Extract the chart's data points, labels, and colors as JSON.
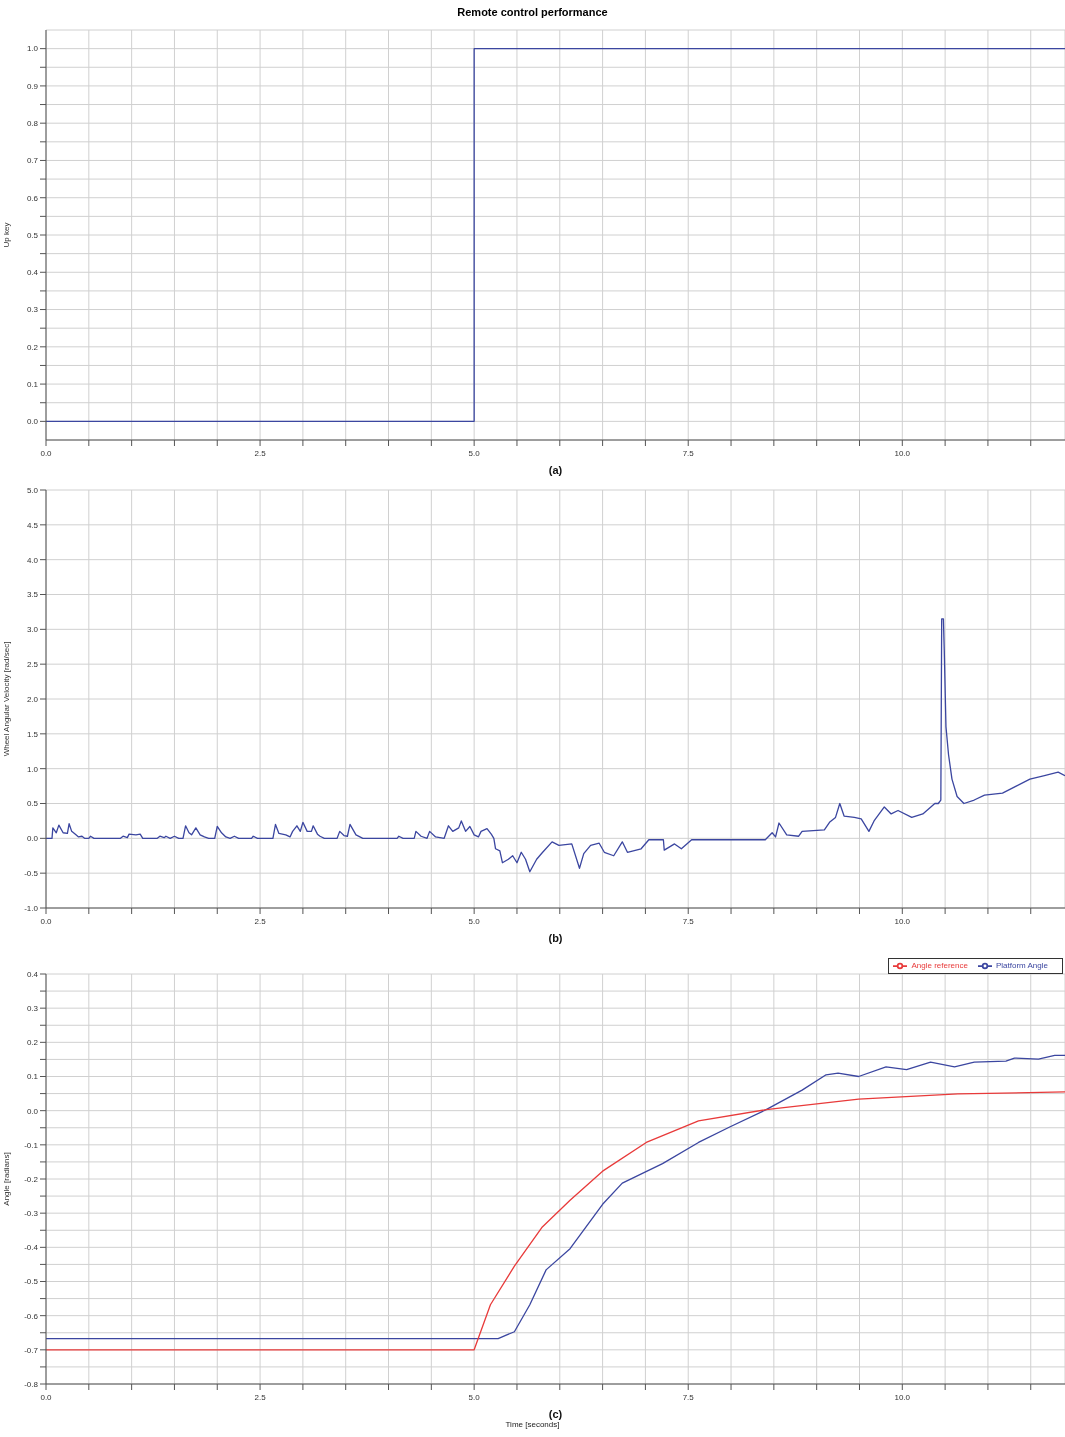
{
  "chart_data": [
    {
      "type": "step",
      "title": "Remote control performance",
      "xlabel": "(a)",
      "ylabel": "Up key",
      "xlim": [
        0,
        11.9
      ],
      "xticks": [
        {
          "value": 0,
          "label": "0.0"
        },
        {
          "value": 0.5,
          "label": null
        },
        {
          "value": 1,
          "label": null
        },
        {
          "value": 1.5,
          "label": null
        },
        {
          "value": 2,
          "label": null
        },
        {
          "value": 2.5,
          "label": "2.5"
        },
        {
          "value": 3,
          "label": null
        },
        {
          "value": 3.5,
          "label": null
        },
        {
          "value": 4,
          "label": null
        },
        {
          "value": 4.5,
          "label": null
        },
        {
          "value": 5,
          "label": "5.0"
        },
        {
          "value": 5.5,
          "label": null
        },
        {
          "value": 6,
          "label": null
        },
        {
          "value": 6.5,
          "label": null
        },
        {
          "value": 7,
          "label": null
        },
        {
          "value": 7.5,
          "label": "7.5"
        },
        {
          "value": 8,
          "label": null
        },
        {
          "value": 8.5,
          "label": null
        },
        {
          "value": 9,
          "label": null
        },
        {
          "value": 9.5,
          "label": null
        },
        {
          "value": 10,
          "label": "10.0"
        },
        {
          "value": 10.5,
          "label": null
        },
        {
          "value": 11,
          "label": null
        },
        {
          "value": 11.5,
          "label": null
        }
      ],
      "ylim": [
        -0.05,
        1.05
      ],
      "yticks": [
        {
          "value": 0,
          "label": "0.0"
        },
        {
          "value": 0.05,
          "label": null
        },
        0.1,
        {
          "value": 0.15,
          "label": null
        },
        0.2,
        {
          "value": 0.25,
          "label": null
        },
        0.3,
        {
          "value": 0.35,
          "label": null
        },
        0.4,
        {
          "value": 0.45,
          "label": null
        },
        0.5,
        {
          "value": 0.55,
          "label": null
        },
        0.6,
        {
          "value": 0.65,
          "label": null
        },
        0.7,
        {
          "value": 0.75,
          "label": null
        },
        0.8,
        {
          "value": 0.85,
          "label": null
        },
        0.9,
        {
          "value": 0.95,
          "label": null
        },
        {
          "value": 1,
          "label": "1.0"
        }
      ],
      "grid": true,
      "series": [
        {
          "color": "#3b46a0",
          "x": [
            0,
            5,
            11.9
          ],
          "values": [
            0,
            1,
            1
          ]
        }
      ]
    },
    {
      "type": "line",
      "xlabel": "(b)",
      "ylabel": "Wheel Angular Velocity [rad/sec]",
      "xlim": [
        0,
        11.9
      ],
      "xticks": [
        {
          "value": 0,
          "label": "0.0"
        },
        {
          "value": 0.5,
          "label": null
        },
        {
          "value": 1,
          "label": null
        },
        {
          "value": 1.5,
          "label": null
        },
        {
          "value": 2,
          "label": null
        },
        {
          "value": 2.5,
          "label": "2.5"
        },
        {
          "value": 3,
          "label": null
        },
        {
          "value": 3.5,
          "label": null
        },
        {
          "value": 4,
          "label": null
        },
        {
          "value": 4.5,
          "label": null
        },
        {
          "value": 5,
          "label": "5.0"
        },
        {
          "value": 5.5,
          "label": null
        },
        {
          "value": 6,
          "label": null
        },
        {
          "value": 6.5,
          "label": null
        },
        {
          "value": 7,
          "label": null
        },
        {
          "value": 7.5,
          "label": "7.5"
        },
        {
          "value": 8,
          "label": null
        },
        {
          "value": 8.5,
          "label": null
        },
        {
          "value": 9,
          "label": null
        },
        {
          "value": 9.5,
          "label": null
        },
        {
          "value": 10,
          "label": "10.0"
        },
        {
          "value": 10.5,
          "label": null
        },
        {
          "value": 11,
          "label": null
        },
        {
          "value": 11.5,
          "label": null
        }
      ],
      "ylim": [
        -1,
        5
      ],
      "yticks": [
        {
          "value": -1,
          "label": "-1.0"
        },
        -0.5,
        {
          "value": 0,
          "label": "0.0"
        },
        0.5,
        {
          "value": 1,
          "label": "1.0"
        },
        1.5,
        {
          "value": 2,
          "label": "2.0"
        },
        2.5,
        {
          "value": 3,
          "label": "3.0"
        },
        3.5,
        {
          "value": 4,
          "label": "4.0"
        },
        4.5,
        {
          "value": 5,
          "label": "5.0"
        }
      ],
      "grid": true,
      "series": [
        {
          "color": "#3b46a0",
          "x": [
            0,
            0.07,
            0.08,
            0.12,
            0.15,
            0.2,
            0.25,
            0.27,
            0.3,
            0.35,
            0.38,
            0.42,
            0.45,
            0.5,
            0.52,
            0.56,
            0.87,
            0.9,
            0.95,
            0.97,
            1.05,
            1.1,
            1.13,
            1.3,
            1.33,
            1.38,
            1.4,
            1.45,
            1.5,
            1.55,
            1.6,
            1.63,
            1.67,
            1.7,
            1.75,
            1.8,
            1.85,
            1.9,
            1.97,
            2.0,
            2.05,
            2.1,
            2.15,
            2.2,
            2.25,
            2.4,
            2.42,
            2.47,
            2.65,
            2.68,
            2.72,
            2.8,
            2.85,
            2.88,
            2.93,
            2.97,
            3.0,
            3.05,
            3.1,
            3.12,
            3.17,
            3.2,
            3.25,
            3.4,
            3.43,
            3.48,
            3.52,
            3.55,
            3.62,
            3.7,
            4.1,
            4.12,
            4.17,
            4.3,
            4.32,
            4.38,
            4.45,
            4.48,
            4.55,
            4.65,
            4.7,
            4.75,
            4.82,
            4.85,
            4.9,
            4.95,
            5.0,
            5.05,
            5.08,
            5.15,
            5.2,
            5.23,
            5.25,
            5.3,
            5.33,
            5.4,
            5.45,
            5.5,
            5.55,
            5.6,
            5.65,
            5.73,
            5.8,
            5.91,
            5.99,
            6.14,
            6.23,
            6.28,
            6.36,
            6.46,
            6.52,
            6.63,
            6.73,
            6.79,
            6.95,
            7.04,
            7.21,
            7.22,
            7.34,
            7.42,
            7.54,
            8.4,
            8.48,
            8.52,
            8.56,
            8.65,
            8.79,
            8.83,
            9.09,
            9.15,
            9.22,
            9.27,
            9.32,
            9.44,
            9.52,
            9.61,
            9.67,
            9.79,
            9.87,
            9.95,
            10.11,
            10.24,
            10.38,
            10.42,
            10.45,
            10.46,
            10.48,
            10.49,
            10.51,
            10.54,
            10.58,
            10.64,
            10.72,
            10.84,
            10.96,
            11.17,
            11.33,
            11.49,
            11.66,
            11.82,
            11.9
          ],
          "values": [
            0,
            0,
            0.15,
            0.08,
            0.19,
            0.08,
            0.07,
            0.21,
            0.1,
            0.05,
            0.02,
            0.03,
            0,
            0,
            0.03,
            0,
            0,
            0.03,
            0.01,
            0.06,
            0.05,
            0.06,
            0,
            0,
            0.03,
            0.01,
            0.03,
            0,
            0.03,
            0,
            0,
            0.18,
            0.08,
            0.05,
            0.15,
            0.05,
            0.02,
            0,
            0,
            0.17,
            0.08,
            0.02,
            0,
            0.03,
            0,
            0,
            0.03,
            0,
            0,
            0.2,
            0.07,
            0.05,
            0.02,
            0.1,
            0.18,
            0.1,
            0.23,
            0.1,
            0.1,
            0.18,
            0.06,
            0.03,
            0,
            0,
            0.1,
            0.04,
            0.03,
            0.2,
            0.05,
            0,
            0,
            0.03,
            0,
            0,
            0.1,
            0.03,
            0,
            0.1,
            0.02,
            0,
            0.18,
            0.1,
            0.15,
            0.25,
            0.1,
            0.17,
            0.05,
            0.02,
            0.1,
            0.14,
            0.06,
            0,
            -0.15,
            -0.18,
            -0.35,
            -0.3,
            -0.25,
            -0.35,
            -0.2,
            -0.3,
            -0.48,
            -0.3,
            -0.2,
            -0.05,
            -0.1,
            -0.08,
            -0.43,
            -0.22,
            -0.1,
            -0.07,
            -0.2,
            -0.25,
            -0.05,
            -0.2,
            -0.15,
            -0.02,
            -0.02,
            -0.17,
            -0.08,
            -0.15,
            -0.02,
            -0.02,
            0.08,
            0.02,
            0.22,
            0.05,
            0.03,
            0.1,
            0.12,
            0.23,
            0.3,
            0.5,
            0.32,
            0.3,
            0.28,
            0.1,
            0.25,
            0.45,
            0.35,
            0.4,
            0.3,
            0.35,
            0.5,
            0.5,
            0.55,
            3.15,
            3.15,
            2.7,
            1.6,
            1.2,
            0.85,
            0.6,
            0.5,
            0.55,
            0.62,
            0.65,
            0.75,
            0.85,
            0.9,
            0.95,
            0.9
          ]
        }
      ]
    },
    {
      "type": "line",
      "xlabel": "(c)",
      "ylabel": "Angle [radians]",
      "annotations": [
        "Time [seconds]"
      ],
      "legend": "top right",
      "xlim": [
        0,
        11.9
      ],
      "xticks": [
        {
          "value": 0,
          "label": "0.0"
        },
        {
          "value": 0.5,
          "label": null
        },
        {
          "value": 1,
          "label": null
        },
        {
          "value": 1.5,
          "label": null
        },
        {
          "value": 2,
          "label": null
        },
        {
          "value": 2.5,
          "label": "2.5"
        },
        {
          "value": 3,
          "label": null
        },
        {
          "value": 3.5,
          "label": null
        },
        {
          "value": 4,
          "label": null
        },
        {
          "value": 4.5,
          "label": null
        },
        {
          "value": 5,
          "label": "5.0"
        },
        {
          "value": 5.5,
          "label": null
        },
        {
          "value": 6,
          "label": null
        },
        {
          "value": 6.5,
          "label": null
        },
        {
          "value": 7,
          "label": null
        },
        {
          "value": 7.5,
          "label": "7.5"
        },
        {
          "value": 8,
          "label": null
        },
        {
          "value": 8.5,
          "label": null
        },
        {
          "value": 9,
          "label": null
        },
        {
          "value": 9.5,
          "label": null
        },
        {
          "value": 10,
          "label": "10.0"
        },
        {
          "value": 10.5,
          "label": null
        },
        {
          "value": 11,
          "label": null
        },
        {
          "value": 11.5,
          "label": null
        }
      ],
      "ylim": [
        -0.8,
        0.4
      ],
      "yticks": [
        -0.8,
        {
          "value": -0.75,
          "label": null
        },
        -0.7,
        {
          "value": -0.65,
          "label": null
        },
        -0.6,
        {
          "value": -0.55,
          "label": null
        },
        -0.5,
        {
          "value": -0.45,
          "label": null
        },
        -0.4,
        {
          "value": -0.35,
          "label": null
        },
        -0.3,
        {
          "value": -0.25,
          "label": null
        },
        -0.2,
        {
          "value": -0.15,
          "label": null
        },
        -0.1,
        {
          "value": -0.05,
          "label": null
        },
        {
          "value": 0,
          "label": "0.0"
        },
        {
          "value": 0.05,
          "label": null
        },
        0.1,
        {
          "value": 0.15,
          "label": null
        },
        0.2,
        {
          "value": 0.25,
          "label": null
        },
        0.3,
        {
          "value": 0.35,
          "label": null
        },
        0.4
      ],
      "grid": true,
      "series": [
        {
          "name": "Platform Angle",
          "color": "#3b46a0",
          "x": [
            0,
            5.28,
            5.47,
            5.65,
            5.84,
            6.12,
            6.5,
            6.73,
            7.2,
            7.62,
            7.99,
            8.41,
            8.83,
            9.11,
            9.25,
            9.49,
            9.81,
            10.05,
            10.33,
            10.61,
            10.84,
            11.21,
            11.31,
            11.59,
            11.78,
            11.9
          ],
          "values": [
            -0.667,
            -0.667,
            -0.647,
            -0.568,
            -0.466,
            -0.404,
            -0.274,
            -0.212,
            -0.155,
            -0.093,
            -0.047,
            0.003,
            0.06,
            0.105,
            0.11,
            0.1,
            0.128,
            0.12,
            0.142,
            0.128,
            0.142,
            0.145,
            0.154,
            0.151,
            0.162,
            0.162
          ]
        },
        {
          "name": "Angle reference",
          "color": "#e83a3a",
          "x": [
            0,
            5,
            5.19,
            5.47,
            5.79,
            6.12,
            6.5,
            7.01,
            7.62,
            8.41,
            9.49,
            10.65,
            11.9
          ],
          "values": [
            -0.7,
            -0.7,
            -0.568,
            -0.455,
            -0.342,
            -0.262,
            -0.177,
            -0.093,
            -0.03,
            0.003,
            0.034,
            0.049,
            0.055
          ]
        }
      ]
    }
  ]
}
